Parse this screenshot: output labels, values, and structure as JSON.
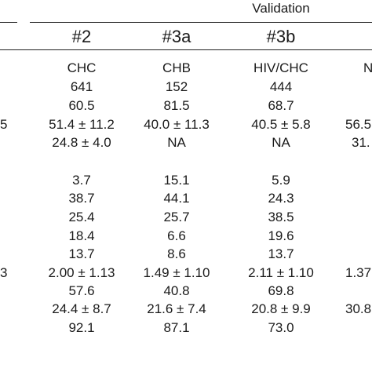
{
  "header": {
    "group_label": "Validation",
    "columns": [
      "#2",
      "#3a",
      "#3b"
    ]
  },
  "left_edge_fragments": [
    "5",
    "3"
  ],
  "right_edge_fragments": [
    "N",
    "56.5",
    "31.",
    "1.37",
    "30.8"
  ],
  "table": {
    "rows": [
      [
        "CHC",
        "CHB",
        "HIV/CHC"
      ],
      [
        "641",
        "152",
        "444"
      ],
      [
        "60.5",
        "81.5",
        "68.7"
      ],
      [
        "51.4 ± 11.2",
        "40.0 ± 11.3",
        "40.5 ± 5.8"
      ],
      [
        "24.8 ± 4.0",
        "NA",
        "NA"
      ],
      [
        "3.7",
        "15.1",
        "5.9"
      ],
      [
        "38.7",
        "44.1",
        "24.3"
      ],
      [
        "25.4",
        "25.7",
        "38.5"
      ],
      [
        "18.4",
        "6.6",
        "19.6"
      ],
      [
        "13.7",
        "8.6",
        "13.7"
      ],
      [
        "2.00 ± 1.13",
        "1.49 ± 1.10",
        "2.11 ± 1.10"
      ],
      [
        "57.6",
        "40.8",
        "69.8"
      ],
      [
        "24.4 ± 8.7",
        "21.6 ± 7.4",
        "20.8 ± 9.9"
      ],
      [
        "92.1",
        "87.1",
        "73.0"
      ]
    ]
  }
}
